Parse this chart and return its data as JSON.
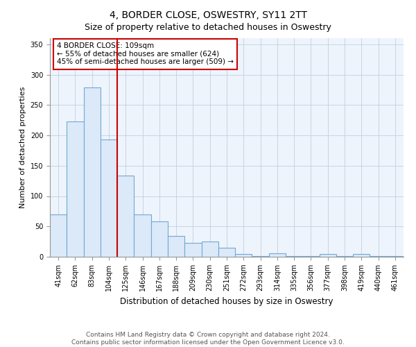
{
  "title": "4, BORDER CLOSE, OSWESTRY, SY11 2TT",
  "subtitle": "Size of property relative to detached houses in Oswestry",
  "xlabel": "Distribution of detached houses by size in Oswestry",
  "ylabel": "Number of detached properties",
  "categories": [
    "41sqm",
    "62sqm",
    "83sqm",
    "104sqm",
    "125sqm",
    "146sqm",
    "167sqm",
    "188sqm",
    "209sqm",
    "230sqm",
    "251sqm",
    "272sqm",
    "293sqm",
    "314sqm",
    "335sqm",
    "356sqm",
    "377sqm",
    "398sqm",
    "419sqm",
    "440sqm",
    "461sqm"
  ],
  "values": [
    70,
    223,
    279,
    193,
    134,
    70,
    58,
    34,
    23,
    25,
    15,
    5,
    1,
    6,
    1,
    1,
    5,
    1,
    5,
    1,
    1
  ],
  "bar_color": "#dce9f8",
  "bar_edge_color": "#6fa8d4",
  "plot_bg_color": "#eef4fc",
  "vline_color": "#cc0000",
  "vline_x_index": 3,
  "annotation_title": "4 BORDER CLOSE: 109sqm",
  "annotation_line1": "← 55% of detached houses are smaller (624)",
  "annotation_line2": "45% of semi-detached houses are larger (509) →",
  "annotation_box_edge": "#cc0000",
  "ylim": [
    0,
    360
  ],
  "yticks": [
    0,
    50,
    100,
    150,
    200,
    250,
    300,
    350
  ],
  "footer_line1": "Contains HM Land Registry data © Crown copyright and database right 2024.",
  "footer_line2": "Contains public sector information licensed under the Open Government Licence v3.0.",
  "title_fontsize": 10,
  "subtitle_fontsize": 9,
  "xlabel_fontsize": 8.5,
  "ylabel_fontsize": 8,
  "tick_fontsize": 7,
  "annotation_fontsize": 7.5,
  "footer_fontsize": 6.5
}
